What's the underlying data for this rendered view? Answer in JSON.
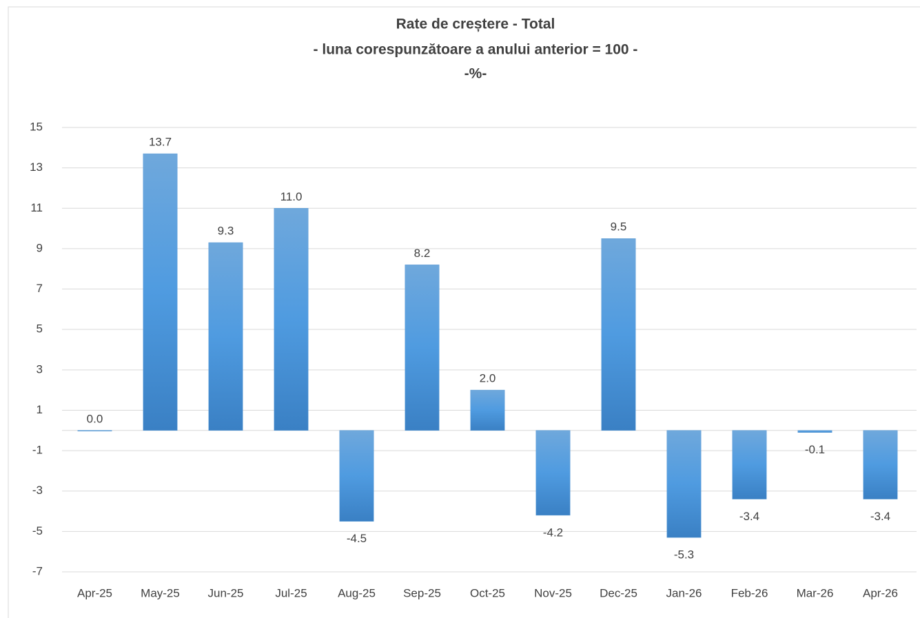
{
  "chart_data": {
    "type": "bar",
    "title": "Rate de creștere - Total",
    "subtitle": "- luna corespunzătoare a anului anterior = 100 -",
    "unit": "-%-",
    "categories": [
      "Apr-25",
      "May-25",
      "Jun-25",
      "Jul-25",
      "Aug-25",
      "Sep-25",
      "Oct-25",
      "Nov-25",
      "Dec-25",
      "Jan-26",
      "Feb-26",
      "Mar-26",
      "Apr-26"
    ],
    "values": [
      0,
      13.7,
      9.3,
      11,
      -4.5,
      8.2,
      2,
      -4.2,
      9.5,
      -5.3,
      -3.4,
      -0.1,
      -3.4
    ],
    "value_labels": [
      "0.0",
      "13.7",
      "9.3",
      "11.0",
      "-4.5",
      "8.2",
      "2.0",
      "-4.2",
      "9.5",
      "-5.3",
      "-3.4",
      "-0.1",
      "-3.4"
    ],
    "color": "#5b9bd5",
    "ylim": [
      -7,
      15
    ],
    "yticks": [
      -7,
      -5,
      -3,
      -1,
      1,
      3,
      5,
      7,
      9,
      11,
      13,
      15
    ],
    "grid": true
  }
}
